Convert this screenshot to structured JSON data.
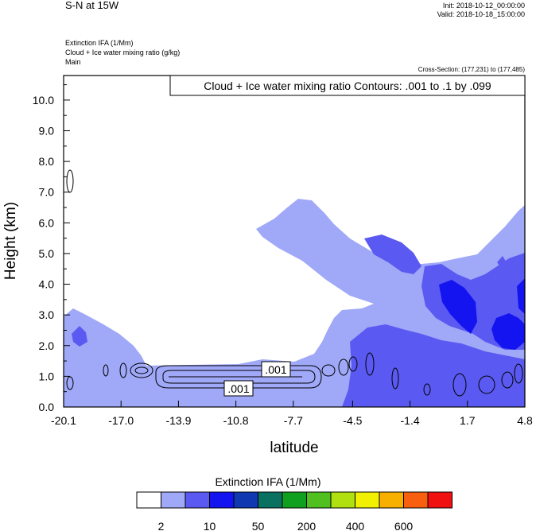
{
  "header": {
    "title": "S-N at 15W",
    "init": "Init: 2018-10-12_00:00:00",
    "valid": "Valid: 2018-10-18_15:00:00",
    "field_line1": "Extinction IFA   (1/Mm)",
    "field_line2": "Cloud + Ice water mixing ratio   (g/kg)",
    "field_line3": "Main",
    "cross_section": "Cross-Section: (177,231) to (177,485)"
  },
  "chart_data": {
    "type": "contour",
    "title": "Cloud + Ice water mixing ratio Contours: .001 to .1 by .099",
    "xlabel": "latitude",
    "ylabel": "Height (km)",
    "xlim": [
      -20.1,
      4.8
    ],
    "ylim": [
      0,
      10.8
    ],
    "x_ticks": [
      "-20.1",
      "-17.0",
      "-13.9",
      "-10.8",
      "-7.7",
      "-4.5",
      "-1.4",
      "1.7",
      "4.8"
    ],
    "y_ticks": [
      "0.0",
      "1.0",
      "2.0",
      "3.0",
      "4.0",
      "5.0",
      "6.0",
      "7.0",
      "8.0",
      "9.0",
      "10.0"
    ],
    "contour_labels": [
      ".001",
      ".001"
    ],
    "contour_levels": [
      0.001,
      0.1
    ],
    "colorbar": {
      "title": "Extinction IFA  (1/Mm)",
      "colors": [
        "#ffffff",
        "#a0a8f8",
        "#5a5af2",
        "#1414f0",
        "#1038b0",
        "#0a7060",
        "#10a020",
        "#50c020",
        "#b0e010",
        "#f0f000",
        "#f8b000",
        "#f86010",
        "#f01010"
      ],
      "labels": [
        "2",
        "10",
        "50",
        "200",
        "400",
        "600"
      ]
    }
  }
}
